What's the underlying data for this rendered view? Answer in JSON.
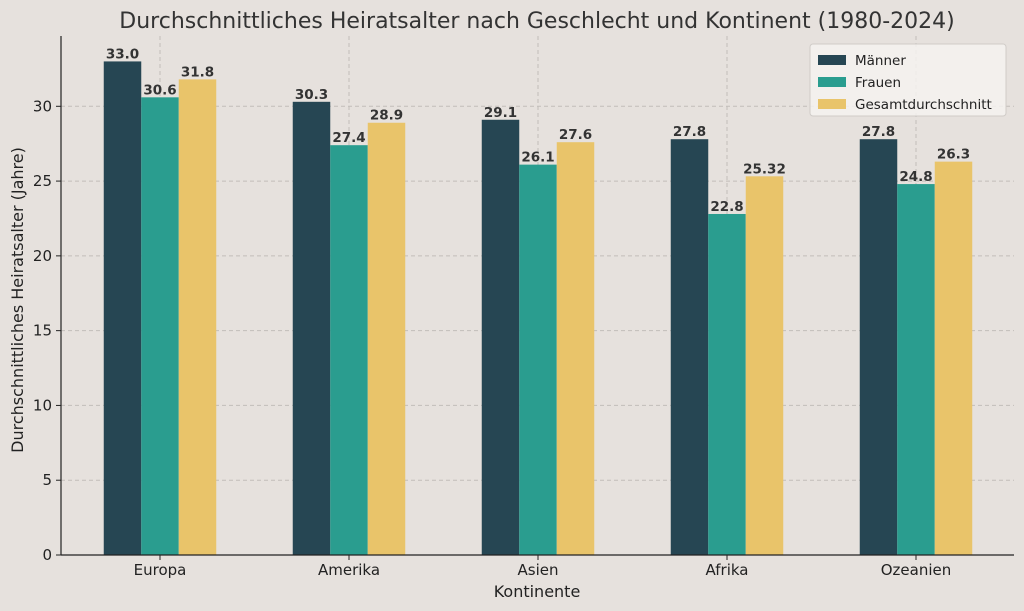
{
  "chart_data": {
    "type": "bar",
    "title": "Durchschnittliches Heiratsalter nach Geschlecht und Kontinent (1980-2024)",
    "xlabel": "Kontinente",
    "ylabel": "Durchschnittliches Heiratsalter (Jahre)",
    "categories": [
      "Europa",
      "Amerika",
      "Asien",
      "Afrika",
      "Ozeanien"
    ],
    "series": [
      {
        "name": "Männer",
        "color": "#264653",
        "values": [
          33.0,
          30.3,
          29.1,
          27.8,
          27.8
        ],
        "labels": [
          "33.0",
          "30.3",
          "29.1",
          "27.8",
          "27.8"
        ]
      },
      {
        "name": "Frauen",
        "color": "#2a9d8f",
        "values": [
          30.6,
          27.4,
          26.1,
          22.8,
          24.8
        ],
        "labels": [
          "30.6",
          "27.4",
          "26.1",
          "22.8",
          "24.8"
        ]
      },
      {
        "name": "Gesamtdurchschnitt",
        "color": "#e9c46a",
        "values": [
          31.8,
          28.9,
          27.6,
          25.32,
          26.3
        ],
        "labels": [
          "31.8",
          "28.9",
          "27.6",
          "25.32",
          "26.3"
        ]
      }
    ],
    "yticks": [
      0,
      5,
      10,
      15,
      20,
      25,
      30
    ],
    "ylim": [
      0,
      34.7
    ],
    "grid": true,
    "legend_position": "top-right"
  }
}
